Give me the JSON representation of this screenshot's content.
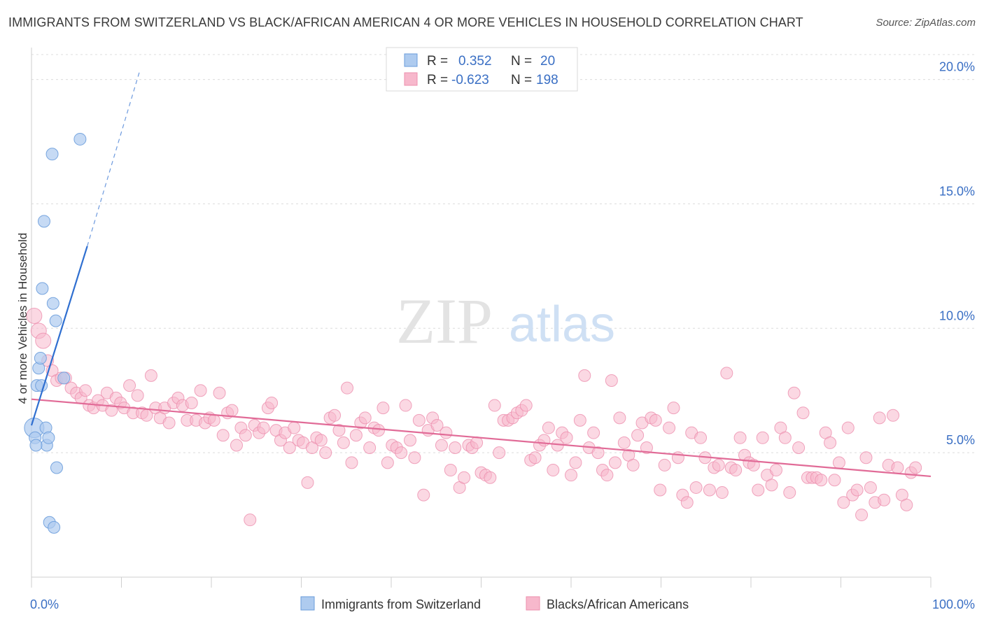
{
  "header": {
    "title": "IMMIGRANTS FROM SWITZERLAND VS BLACK/AFRICAN AMERICAN 4 OR MORE VEHICLES IN HOUSEHOLD CORRELATION CHART",
    "source": "Source: ZipAtlas.com"
  },
  "watermark": {
    "zip": "ZIP",
    "atlas": "atlas"
  },
  "legend_box": {
    "rows": [
      {
        "r_label": "R =",
        "r_value": "0.352",
        "n_label": "N =",
        "n_value": "20"
      },
      {
        "r_label": "R =",
        "r_value": "-0.623",
        "n_label": "N =",
        "n_value": "198"
      }
    ]
  },
  "bottom_legend": [
    "Immigrants from Switzerland",
    "Blacks/African Americans"
  ],
  "colors": {
    "blue_fill": "#aecbef",
    "blue_stroke": "#6b9ddb",
    "blue_line": "#2f6fd0",
    "pink_fill": "#f7b8cc",
    "pink_stroke": "#ec8fae",
    "pink_line": "#e16b97",
    "tick_label": "#3a6fc4",
    "grid": "#dcdcdc"
  },
  "chart_data": {
    "type": "scatter",
    "title": "IMMIGRANTS FROM SWITZERLAND VS BLACK/AFRICAN AMERICAN 4 OR MORE VEHICLES IN HOUSEHOLD CORRELATION CHART",
    "xlabel": "",
    "ylabel": "4 or more Vehicles in Household",
    "xlim": [
      0,
      100
    ],
    "ylim": [
      0,
      21
    ],
    "x_tick_labels": [
      "0.0%",
      "100.0%"
    ],
    "y_ticks": [
      5,
      10,
      15,
      20
    ],
    "y_tick_labels": [
      "5.0%",
      "10.0%",
      "15.0%",
      "20.0%"
    ],
    "grid": true,
    "series": [
      {
        "name": "Immigrants from Switzerland",
        "r": 0.352,
        "n": 20,
        "trend": {
          "x0": 0,
          "y0": 6.1,
          "x1": 6.2,
          "y1": 13.3,
          "dash_to_x": 12,
          "dash_to_y": 20.3
        },
        "points": [
          {
            "x": 0.3,
            "y": 6.0,
            "big": true
          },
          {
            "x": 0.4,
            "y": 5.6
          },
          {
            "x": 0.6,
            "y": 7.7
          },
          {
            "x": 0.8,
            "y": 8.4
          },
          {
            "x": 1.0,
            "y": 8.8
          },
          {
            "x": 1.2,
            "y": 11.6
          },
          {
            "x": 1.4,
            "y": 14.3
          },
          {
            "x": 1.6,
            "y": 6.0
          },
          {
            "x": 1.7,
            "y": 5.3
          },
          {
            "x": 1.9,
            "y": 5.6
          },
          {
            "x": 2.0,
            "y": 2.2
          },
          {
            "x": 2.3,
            "y": 17.0
          },
          {
            "x": 2.4,
            "y": 11.0
          },
          {
            "x": 2.5,
            "y": 2.0
          },
          {
            "x": 2.7,
            "y": 10.3
          },
          {
            "x": 2.8,
            "y": 4.4
          },
          {
            "x": 3.6,
            "y": 8.0
          },
          {
            "x": 0.5,
            "y": 5.3
          },
          {
            "x": 1.1,
            "y": 7.7
          },
          {
            "x": 5.4,
            "y": 17.6
          }
        ]
      },
      {
        "name": "Blacks/African Americans",
        "r": -0.623,
        "n": 198,
        "trend": {
          "x0": 0,
          "y0": 7.15,
          "x1": 100,
          "y1": 4.05
        },
        "points": [
          {
            "x": 0.3,
            "y": 10.5,
            "big": true
          },
          {
            "x": 0.8,
            "y": 9.9,
            "big": true
          },
          {
            "x": 1.3,
            "y": 9.5,
            "big": true
          },
          {
            "x": 1.8,
            "y": 8.7
          },
          {
            "x": 2.3,
            "y": 8.3
          },
          {
            "x": 2.8,
            "y": 7.9
          },
          {
            "x": 3.3,
            "y": 8.0
          },
          {
            "x": 3.8,
            "y": 8.0
          },
          {
            "x": 4.4,
            "y": 7.6
          },
          {
            "x": 5.0,
            "y": 7.4
          },
          {
            "x": 5.5,
            "y": 7.2
          },
          {
            "x": 6.0,
            "y": 7.5
          },
          {
            "x": 6.4,
            "y": 6.9
          },
          {
            "x": 6.9,
            "y": 6.8
          },
          {
            "x": 7.4,
            "y": 7.1
          },
          {
            "x": 7.9,
            "y": 6.9
          },
          {
            "x": 8.4,
            "y": 7.4
          },
          {
            "x": 8.9,
            "y": 6.7
          },
          {
            "x": 9.4,
            "y": 7.2
          },
          {
            "x": 9.9,
            "y": 7.0
          },
          {
            "x": 10.3,
            "y": 6.8
          },
          {
            "x": 10.9,
            "y": 7.7
          },
          {
            "x": 11.3,
            "y": 6.6
          },
          {
            "x": 11.8,
            "y": 7.3
          },
          {
            "x": 12.3,
            "y": 6.6
          },
          {
            "x": 12.8,
            "y": 6.5
          },
          {
            "x": 13.3,
            "y": 8.1
          },
          {
            "x": 13.8,
            "y": 6.8
          },
          {
            "x": 14.3,
            "y": 6.4
          },
          {
            "x": 14.8,
            "y": 6.8
          },
          {
            "x": 15.3,
            "y": 6.2
          },
          {
            "x": 15.8,
            "y": 7.0
          },
          {
            "x": 16.3,
            "y": 7.2
          },
          {
            "x": 16.8,
            "y": 6.9
          },
          {
            "x": 17.3,
            "y": 6.3
          },
          {
            "x": 17.8,
            "y": 7.0
          },
          {
            "x": 18.3,
            "y": 6.3
          },
          {
            "x": 18.8,
            "y": 7.5
          },
          {
            "x": 19.3,
            "y": 6.2
          },
          {
            "x": 19.8,
            "y": 6.4
          },
          {
            "x": 20.3,
            "y": 6.3
          },
          {
            "x": 20.9,
            "y": 7.4
          },
          {
            "x": 21.3,
            "y": 5.7
          },
          {
            "x": 21.8,
            "y": 6.6
          },
          {
            "x": 22.3,
            "y": 6.7
          },
          {
            "x": 22.8,
            "y": 5.3
          },
          {
            "x": 23.3,
            "y": 6.0
          },
          {
            "x": 23.8,
            "y": 5.7
          },
          {
            "x": 24.3,
            "y": 2.3
          },
          {
            "x": 24.8,
            "y": 6.1
          },
          {
            "x": 25.3,
            "y": 5.8
          },
          {
            "x": 25.8,
            "y": 6.0
          },
          {
            "x": 26.3,
            "y": 6.8
          },
          {
            "x": 26.7,
            "y": 7.0
          },
          {
            "x": 27.2,
            "y": 5.9
          },
          {
            "x": 27.7,
            "y": 5.5
          },
          {
            "x": 28.2,
            "y": 5.8
          },
          {
            "x": 28.7,
            "y": 5.2
          },
          {
            "x": 29.2,
            "y": 6.0
          },
          {
            "x": 29.7,
            "y": 5.5
          },
          {
            "x": 30.2,
            "y": 5.4
          },
          {
            "x": 30.7,
            "y": 3.8
          },
          {
            "x": 31.2,
            "y": 5.2
          },
          {
            "x": 31.7,
            "y": 5.6
          },
          {
            "x": 32.2,
            "y": 5.5
          },
          {
            "x": 32.7,
            "y": 5.0
          },
          {
            "x": 33.2,
            "y": 6.4
          },
          {
            "x": 33.7,
            "y": 6.5
          },
          {
            "x": 34.2,
            "y": 5.9
          },
          {
            "x": 34.7,
            "y": 5.4
          },
          {
            "x": 35.1,
            "y": 7.6
          },
          {
            "x": 35.6,
            "y": 4.6
          },
          {
            "x": 36.1,
            "y": 5.7
          },
          {
            "x": 36.6,
            "y": 6.2
          },
          {
            "x": 37.1,
            "y": 6.4
          },
          {
            "x": 37.6,
            "y": 5.2
          },
          {
            "x": 38.1,
            "y": 6.0
          },
          {
            "x": 38.6,
            "y": 5.9
          },
          {
            "x": 39.1,
            "y": 6.8
          },
          {
            "x": 39.6,
            "y": 4.6
          },
          {
            "x": 40.1,
            "y": 5.3
          },
          {
            "x": 40.6,
            "y": 5.2
          },
          {
            "x": 41.1,
            "y": 5.0
          },
          {
            "x": 41.6,
            "y": 6.9
          },
          {
            "x": 42.1,
            "y": 5.5
          },
          {
            "x": 42.6,
            "y": 4.8
          },
          {
            "x": 43.1,
            "y": 6.3
          },
          {
            "x": 43.6,
            "y": 3.3
          },
          {
            "x": 44.1,
            "y": 5.9
          },
          {
            "x": 44.6,
            "y": 6.4
          },
          {
            "x": 45.1,
            "y": 6.1
          },
          {
            "x": 45.6,
            "y": 5.3
          },
          {
            "x": 46.1,
            "y": 5.8
          },
          {
            "x": 46.6,
            "y": 4.3
          },
          {
            "x": 47.1,
            "y": 5.2
          },
          {
            "x": 47.6,
            "y": 3.6
          },
          {
            "x": 48.1,
            "y": 4.0
          },
          {
            "x": 48.6,
            "y": 5.3
          },
          {
            "x": 49.0,
            "y": 5.2
          },
          {
            "x": 49.5,
            "y": 5.4
          },
          {
            "x": 50.0,
            "y": 4.2
          },
          {
            "x": 50.5,
            "y": 4.1
          },
          {
            "x": 51.0,
            "y": 4.0
          },
          {
            "x": 51.5,
            "y": 6.9
          },
          {
            "x": 52.0,
            "y": 5.0
          },
          {
            "x": 52.5,
            "y": 6.3
          },
          {
            "x": 53.0,
            "y": 6.3
          },
          {
            "x": 53.5,
            "y": 6.4
          },
          {
            "x": 54.0,
            "y": 6.6
          },
          {
            "x": 54.5,
            "y": 6.7
          },
          {
            "x": 55.0,
            "y": 6.9
          },
          {
            "x": 55.5,
            "y": 4.7
          },
          {
            "x": 56.0,
            "y": 4.8
          },
          {
            "x": 56.5,
            "y": 5.3
          },
          {
            "x": 57.0,
            "y": 5.5
          },
          {
            "x": 57.5,
            "y": 6.0
          },
          {
            "x": 58.0,
            "y": 4.3
          },
          {
            "x": 58.5,
            "y": 5.3
          },
          {
            "x": 59.0,
            "y": 5.8
          },
          {
            "x": 59.5,
            "y": 5.6
          },
          {
            "x": 60.0,
            "y": 4.1
          },
          {
            "x": 60.5,
            "y": 4.6
          },
          {
            "x": 61.0,
            "y": 6.3
          },
          {
            "x": 61.5,
            "y": 8.1
          },
          {
            "x": 62.0,
            "y": 5.2
          },
          {
            "x": 62.5,
            "y": 5.8
          },
          {
            "x": 63.0,
            "y": 5.0
          },
          {
            "x": 63.5,
            "y": 4.3
          },
          {
            "x": 64.0,
            "y": 4.1
          },
          {
            "x": 64.5,
            "y": 7.9
          },
          {
            "x": 64.9,
            "y": 4.6
          },
          {
            "x": 65.4,
            "y": 6.4
          },
          {
            "x": 65.9,
            "y": 5.4
          },
          {
            "x": 66.4,
            "y": 4.9
          },
          {
            "x": 66.9,
            "y": 4.5
          },
          {
            "x": 67.4,
            "y": 5.7
          },
          {
            "x": 67.9,
            "y": 6.2
          },
          {
            "x": 68.4,
            "y": 5.2
          },
          {
            "x": 68.9,
            "y": 6.4
          },
          {
            "x": 69.4,
            "y": 6.3
          },
          {
            "x": 69.9,
            "y": 3.5
          },
          {
            "x": 70.4,
            "y": 4.5
          },
          {
            "x": 70.9,
            "y": 6.0
          },
          {
            "x": 71.4,
            "y": 6.8
          },
          {
            "x": 71.9,
            "y": 4.8
          },
          {
            "x": 72.4,
            "y": 3.3
          },
          {
            "x": 72.9,
            "y": 3.0
          },
          {
            "x": 73.4,
            "y": 5.8
          },
          {
            "x": 73.9,
            "y": 3.6
          },
          {
            "x": 74.4,
            "y": 5.6
          },
          {
            "x": 74.9,
            "y": 4.8
          },
          {
            "x": 75.4,
            "y": 3.5
          },
          {
            "x": 75.9,
            "y": 4.4
          },
          {
            "x": 76.4,
            "y": 4.5
          },
          {
            "x": 76.8,
            "y": 3.4
          },
          {
            "x": 77.3,
            "y": 8.2
          },
          {
            "x": 77.8,
            "y": 4.4
          },
          {
            "x": 78.3,
            "y": 4.3
          },
          {
            "x": 78.8,
            "y": 5.6
          },
          {
            "x": 79.3,
            "y": 4.9
          },
          {
            "x": 79.8,
            "y": 4.6
          },
          {
            "x": 80.3,
            "y": 4.5
          },
          {
            "x": 80.8,
            "y": 3.5
          },
          {
            "x": 81.3,
            "y": 5.6
          },
          {
            "x": 81.8,
            "y": 4.1
          },
          {
            "x": 82.3,
            "y": 3.7
          },
          {
            "x": 82.8,
            "y": 4.3
          },
          {
            "x": 83.3,
            "y": 6.0
          },
          {
            "x": 83.8,
            "y": 5.6
          },
          {
            "x": 84.3,
            "y": 3.4
          },
          {
            "x": 84.8,
            "y": 7.4
          },
          {
            "x": 85.3,
            "y": 5.2
          },
          {
            "x": 85.8,
            "y": 6.6
          },
          {
            "x": 86.3,
            "y": 4.0
          },
          {
            "x": 86.8,
            "y": 4.0
          },
          {
            "x": 87.3,
            "y": 4.0
          },
          {
            "x": 87.8,
            "y": 3.9
          },
          {
            "x": 88.3,
            "y": 5.8
          },
          {
            "x": 88.8,
            "y": 5.4
          },
          {
            "x": 89.3,
            "y": 3.9
          },
          {
            "x": 89.8,
            "y": 4.6
          },
          {
            "x": 90.3,
            "y": 3.0
          },
          {
            "x": 90.8,
            "y": 6.0
          },
          {
            "x": 91.3,
            "y": 3.3
          },
          {
            "x": 91.8,
            "y": 3.5
          },
          {
            "x": 92.3,
            "y": 2.5
          },
          {
            "x": 92.8,
            "y": 4.8
          },
          {
            "x": 93.3,
            "y": 3.6
          },
          {
            "x": 93.8,
            "y": 3.0
          },
          {
            "x": 94.3,
            "y": 6.4
          },
          {
            "x": 94.8,
            "y": 3.1
          },
          {
            "x": 95.3,
            "y": 4.5
          },
          {
            "x": 95.8,
            "y": 6.5
          },
          {
            "x": 96.3,
            "y": 4.4
          },
          {
            "x": 96.8,
            "y": 3.3
          },
          {
            "x": 97.3,
            "y": 2.9
          },
          {
            "x": 97.8,
            "y": 4.2
          },
          {
            "x": 98.3,
            "y": 4.4
          }
        ]
      }
    ]
  }
}
